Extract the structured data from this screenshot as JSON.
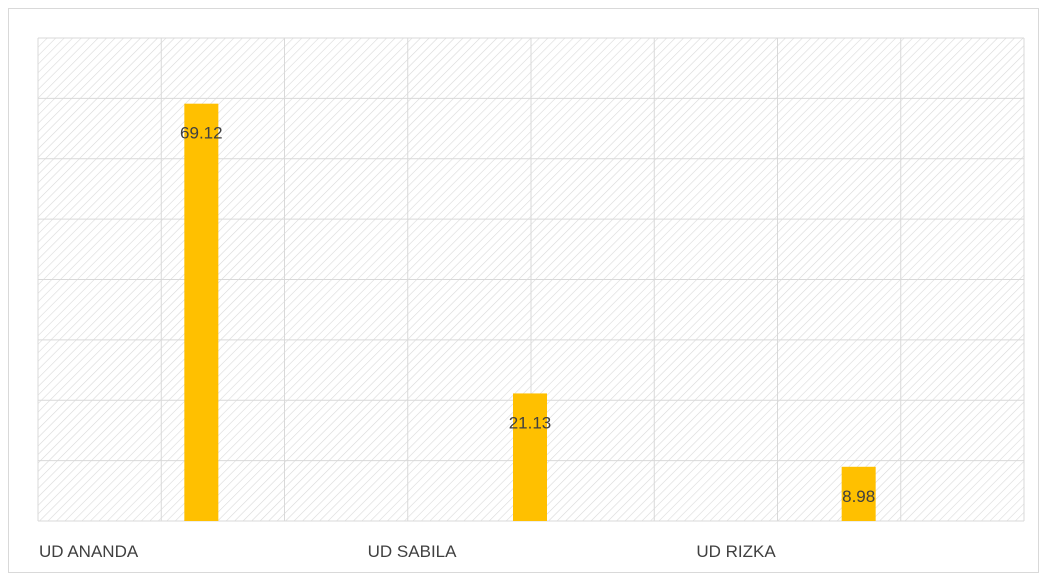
{
  "colors": {
    "bar": "#ffc000",
    "grid": "#d9d9d9",
    "hatch": "#d9d9d9",
    "text": "#404040"
  },
  "chart_data": {
    "type": "bar",
    "title": "",
    "xlabel": "",
    "ylabel": "",
    "categories": [
      "UD ANANDA",
      "UD SABILA",
      "UD RIZKA"
    ],
    "values": [
      69.12,
      21.13,
      8.98
    ],
    "data_labels": [
      "69.12",
      "21.13",
      "8.98"
    ],
    "ylim": [
      0,
      80
    ],
    "y_gridlines": 8,
    "x_gridlines": 8,
    "grid": true,
    "legend": "none",
    "plot_pattern": "diagonal-hatch"
  }
}
